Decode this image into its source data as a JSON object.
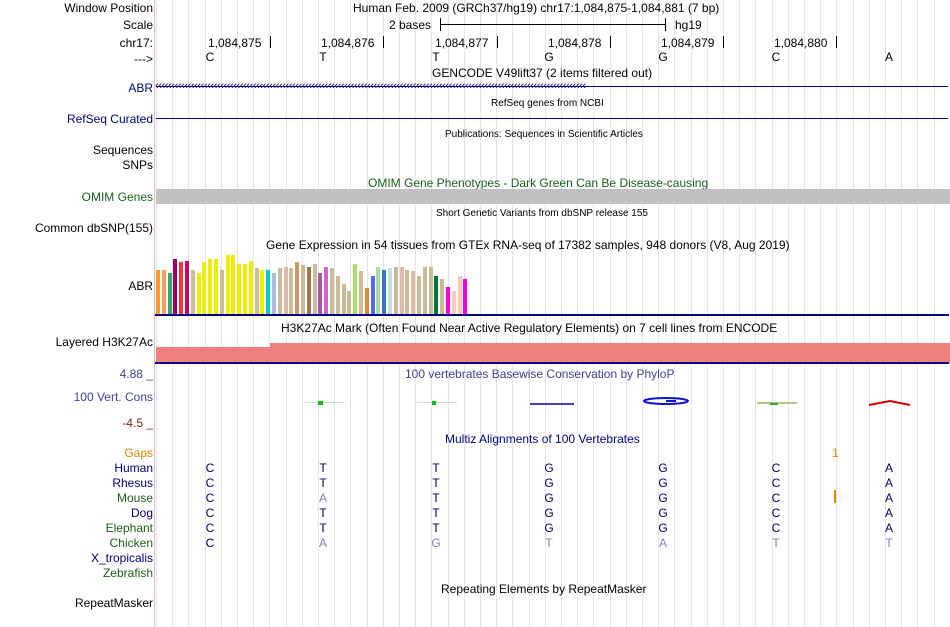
{
  "header": {
    "window_position_label": "Window Position",
    "scale_label": "Scale",
    "chrom_label": "chr17:",
    "strand_label": "--->",
    "title": "Human Feb. 2009 (GRCh37/hg19)   chr17:1,084,875-1,084,881 (7 bp)",
    "scale_text": "2 bases",
    "assembly": "hg19",
    "positions": [
      "1,084,875",
      "1,084,876",
      "1,084,877",
      "1,084,878",
      "1,084,879",
      "1,084,880"
    ],
    "bases": [
      "C",
      "T",
      "T",
      "G",
      "G",
      "C",
      "A"
    ]
  },
  "tracks": {
    "gencode": {
      "title": "GENCODE V49lift37 (2 items filtered out)",
      "label": "ABR",
      "arrows": "‹‹‹‹‹‹‹‹‹‹‹‹‹‹‹‹‹‹‹‹‹‹‹‹‹‹‹‹‹‹‹‹‹‹‹‹‹‹‹‹‹‹‹‹‹‹‹‹‹‹‹‹‹‹‹‹‹‹‹‹‹‹‹‹‹‹‹‹‹‹‹‹‹‹‹‹‹‹‹‹‹‹‹‹‹‹‹‹‹‹‹‹‹‹‹‹‹‹‹‹‹‹‹‹‹‹‹‹‹‹‹‹‹‹‹‹‹‹‹‹‹‹‹‹‹‹‹‹‹‹‹‹"
    },
    "refseq": {
      "title": "RefSeq genes from NCBI",
      "label": "RefSeq Curated"
    },
    "publications": {
      "title": "Publications: Sequences in Scientific Articles",
      "label1": "Sequences",
      "label2": "SNPs"
    },
    "omim": {
      "title": "OMIM Gene Phenotypes - Dark Green Can Be Disease-causing",
      "label": "OMIM Genes"
    },
    "dbsnp": {
      "title": "Short Genetic Variants from dbSNP release 155",
      "label": "Common dbSNP(155)"
    },
    "gtex": {
      "title": "Gene Expression in 54 tissues from GTEx RNA-seq of 17382 samples, 948 donors (V8, Aug 2019)",
      "label": "ABR"
    },
    "h3k27ac": {
      "title": "H3K27Ac Mark (Often Found Near Active Regulatory Elements) on 7 cell lines from ENCODE",
      "label": "Layered H3K27Ac"
    },
    "phylop": {
      "title": "100 vertebrates Basewise Conservation by PhyloP",
      "label": "100 Vert. Cons",
      "max": "4.88 _",
      "min": "-4.5 _"
    },
    "multiz": {
      "title": "Multiz Alignments of 100 Vertebrates",
      "gaps_label": "Gaps",
      "gap_mark": "1",
      "species": [
        {
          "name": "Human",
          "bases": [
            "C",
            "T",
            "T",
            "G",
            "G",
            "C",
            "A"
          ],
          "diff": [
            false,
            false,
            false,
            false,
            false,
            false,
            false
          ]
        },
        {
          "name": "Rhesus",
          "bases": [
            "C",
            "T",
            "T",
            "G",
            "G",
            "C",
            "A"
          ],
          "diff": [
            false,
            false,
            false,
            false,
            false,
            false,
            false
          ]
        },
        {
          "name": "Mouse",
          "bases": [
            "C",
            "A",
            "T",
            "G",
            "G",
            "C",
            "A"
          ],
          "diff": [
            false,
            true,
            false,
            false,
            false,
            false,
            false
          ]
        },
        {
          "name": "Dog",
          "bases": [
            "C",
            "T",
            "T",
            "G",
            "G",
            "C",
            "A"
          ],
          "diff": [
            false,
            false,
            false,
            false,
            false,
            false,
            false
          ]
        },
        {
          "name": "Elephant",
          "bases": [
            "C",
            "T",
            "T",
            "G",
            "G",
            "C",
            "A"
          ],
          "diff": [
            false,
            false,
            false,
            false,
            false,
            false,
            false
          ]
        },
        {
          "name": "Chicken",
          "bases": [
            "C",
            "A",
            "G",
            "T",
            "A",
            "T",
            "T"
          ],
          "diff": [
            false,
            true,
            true,
            true,
            true,
            true,
            true
          ]
        },
        {
          "name": "X_tropicalis",
          "bases": [],
          "diff": []
        },
        {
          "name": "Zebrafish",
          "bases": [],
          "diff": []
        }
      ]
    },
    "repeatmasker": {
      "title": "Repeating Elements by RepeatMasker",
      "label": "RepeatMasker"
    }
  },
  "colors": {
    "navy": "#000080",
    "green": "#1a5e1a",
    "orange": "#e08800",
    "maroon": "#8a1a1a",
    "phylop_label": "#404090",
    "omim_bar": "#c0c0c0",
    "h3k27ac": "#f08080"
  },
  "gtex_values": [
    0.58,
    0.58,
    0.54,
    0.72,
    0.68,
    0.7,
    0.58,
    0.54,
    0.68,
    0.72,
    0.72,
    0.58,
    0.78,
    0.78,
    0.66,
    0.66,
    0.7,
    0.6,
    0.58,
    0.58,
    0.54,
    0.6,
    0.62,
    0.6,
    0.68,
    0.64,
    0.62,
    0.66,
    0.54,
    0.62,
    0.6,
    0.5,
    0.4,
    0.3,
    0.66,
    0.56,
    0.34,
    0.5,
    0.62,
    0.58,
    0.6,
    0.62,
    0.62,
    0.58,
    0.56,
    0.5,
    0.62,
    0.62,
    0.5,
    0.46,
    0.36,
    0.3,
    0.5,
    0.46
  ]
}
